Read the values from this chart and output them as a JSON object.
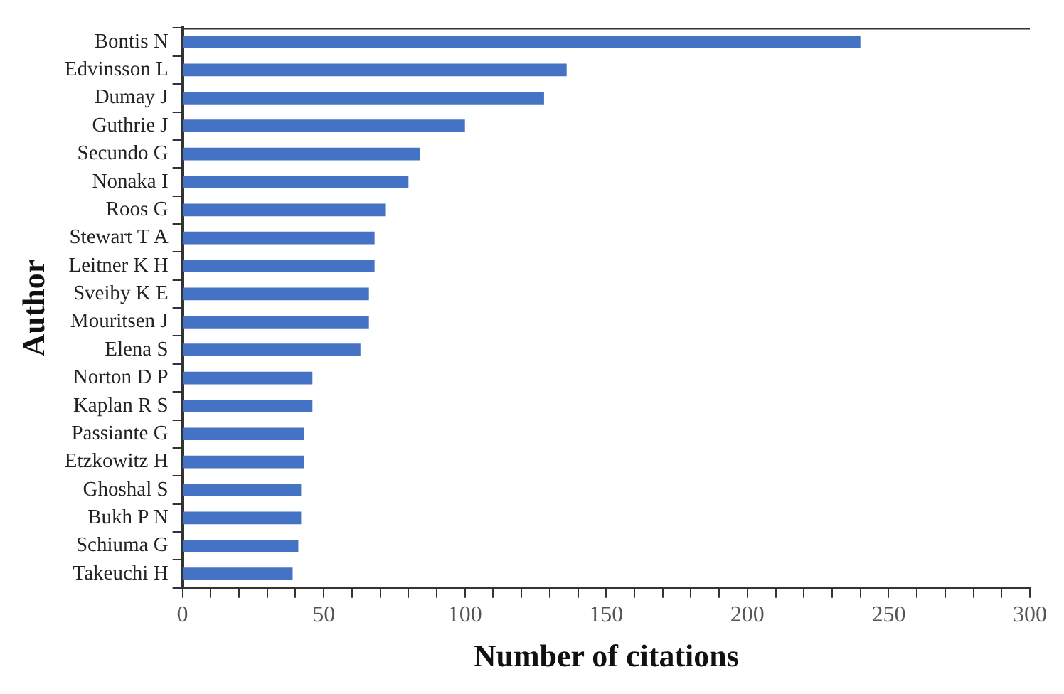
{
  "chart_data": {
    "type": "bar",
    "orientation": "horizontal",
    "xlabel": "Number of citations",
    "ylabel": "Author",
    "categories": [
      "Bontis N",
      "Edvinsson L",
      "Dumay J",
      "Guthrie J",
      "Secundo G",
      "Nonaka I",
      "Roos G",
      "Stewart T A",
      "Leitner K H",
      "Sveiby K E",
      "Mouritsen J",
      "Elena S",
      "Norton D P",
      "Kaplan R S",
      "Passiante G",
      "Etzkowitz H",
      "Ghoshal S",
      "Bukh P N",
      "Schiuma G",
      "Takeuchi H"
    ],
    "values": [
      240,
      136,
      128,
      100,
      84,
      80,
      72,
      68,
      68,
      66,
      66,
      63,
      46,
      46,
      43,
      43,
      42,
      42,
      41,
      39
    ],
    "color": "#4472c4",
    "xlim": [
      0,
      300
    ],
    "xticks": [
      0,
      {
        "value": 10,
        "label": null
      },
      {
        "value": 20,
        "label": null
      },
      {
        "value": 30,
        "label": null
      },
      {
        "value": 40,
        "label": null
      },
      50,
      {
        "value": 60,
        "label": null
      },
      {
        "value": 70,
        "label": null
      },
      {
        "value": 80,
        "label": null
      },
      {
        "value": 90,
        "label": null
      },
      100,
      {
        "value": 110,
        "label": null
      },
      {
        "value": 120,
        "label": null
      },
      {
        "value": 130,
        "label": null
      },
      {
        "value": 140,
        "label": null
      },
      150,
      {
        "value": 160,
        "label": null
      },
      {
        "value": 170,
        "label": null
      },
      {
        "value": 180,
        "label": null
      },
      {
        "value": 190,
        "label": null
      },
      200,
      {
        "value": 210,
        "label": null
      },
      {
        "value": 220,
        "label": null
      },
      {
        "value": 230,
        "label": null
      },
      {
        "value": 240,
        "label": null
      },
      250,
      {
        "value": 260,
        "label": null
      },
      {
        "value": 270,
        "label": null
      },
      {
        "value": 280,
        "label": null
      },
      {
        "value": 290,
        "label": null
      },
      300
    ],
    "grid": false,
    "legend": false
  }
}
